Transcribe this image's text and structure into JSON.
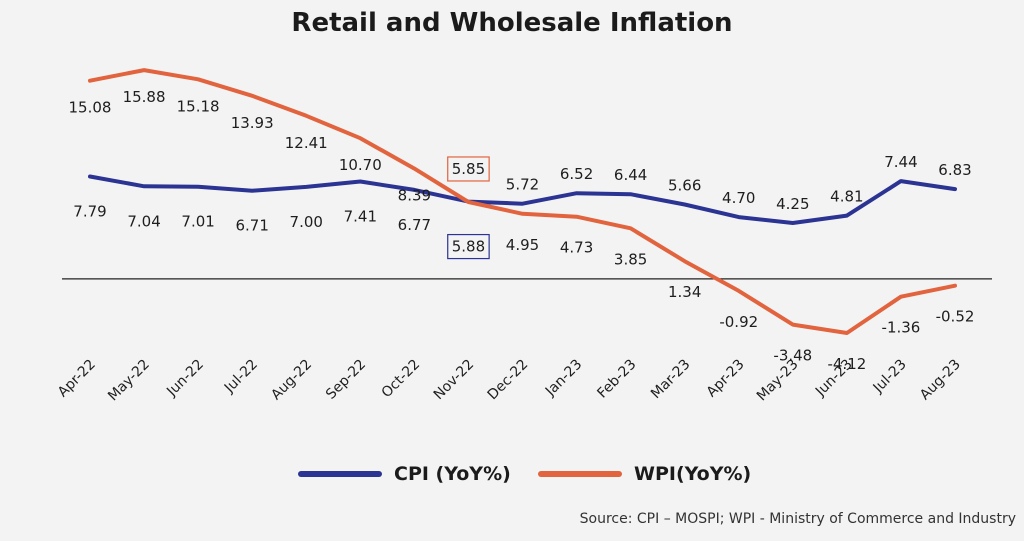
{
  "chart_data": {
    "type": "line",
    "title": "Retail and Wholesale Inflation",
    "categories": [
      "Apr-22",
      "May-22",
      "Jun-22",
      "Jul-22",
      "Aug-22",
      "Sep-22",
      "Oct-22",
      "Nov-22",
      "Dec-22",
      "Jan-23",
      "Feb-23",
      "Mar-23",
      "Apr-23",
      "May-23",
      "Jun-23",
      "Jul-23",
      "Aug-23"
    ],
    "series": [
      {
        "name": "CPI (YoY%)",
        "color": "#2b3493",
        "values": [
          7.79,
          7.04,
          7.01,
          6.71,
          7.0,
          7.41,
          6.77,
          5.88,
          5.72,
          6.52,
          6.44,
          5.66,
          4.7,
          4.25,
          4.81,
          7.44,
          6.83
        ],
        "labels": [
          "7.79",
          "7.04",
          "7.01",
          "6.71",
          "7.00",
          "7.41",
          "6.77",
          "5.88",
          "5.72",
          "6.52",
          "6.44",
          "5.66",
          "4.70",
          "4.25",
          "4.81",
          "7.44",
          "6.83"
        ]
      },
      {
        "name": "WPI(YoY%)",
        "color": "#e2643e",
        "values": [
          15.08,
          15.88,
          15.18,
          13.93,
          12.41,
          10.7,
          8.39,
          5.85,
          4.95,
          4.73,
          3.85,
          1.34,
          -0.92,
          -3.48,
          -4.12,
          -1.36,
          -0.52
        ],
        "labels": [
          "15.08",
          "15.88",
          "15.18",
          "13.93",
          "12.41",
          "10.70",
          "8.39",
          "5.85",
          "4.95",
          "4.73",
          "3.85",
          "1.34",
          "-0.92",
          "-3.48",
          "-4.12",
          "-1.36",
          "-0.52"
        ]
      }
    ],
    "ylim": [
      -4.5,
      16.5
    ],
    "zero_line": true,
    "legend": "bottom-center",
    "source": "Source: CPI – MOSPI; WPI - Ministry of Commerce and Industry"
  }
}
